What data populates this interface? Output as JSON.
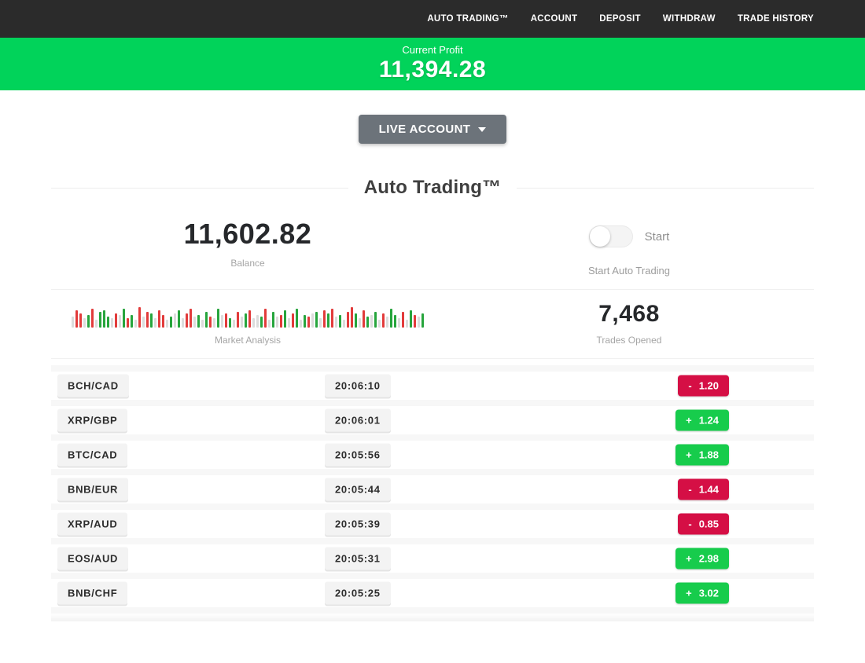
{
  "nav": {
    "items": [
      "AUTO TRADING™",
      "ACCOUNT",
      "DEPOSIT",
      "WITHDRAW",
      "TRADE HISTORY"
    ]
  },
  "profit_banner": {
    "label": "Current Profit",
    "value": "11,394.28"
  },
  "account_selector": {
    "label": "LIVE ACCOUNT"
  },
  "section_title": "Auto Trading™",
  "stats": {
    "balance": {
      "value": "11,602.82",
      "label": "Balance"
    },
    "toggle": {
      "label": "Start",
      "caption": "Start Auto Trading",
      "state": "off"
    },
    "market": {
      "label": "Market Analysis"
    },
    "trades_opened": {
      "value": "7,468",
      "label": "Trades Opened"
    }
  },
  "colors": {
    "nav_dark": "#2b2b2b",
    "banner_green": "#01d35a",
    "gain_green": "#17cc4c",
    "loss_red": "#d50f45",
    "button_gray": "#6c737a",
    "bar_red": "#e23b3b",
    "bar_green": "#27a53d",
    "bar_neutral": "#dcdcdc"
  },
  "market_bars": [
    [
      "n",
      14
    ],
    [
      "r",
      22
    ],
    [
      "r",
      18
    ],
    [
      "n",
      12
    ],
    [
      "g",
      16
    ],
    [
      "r",
      24
    ],
    [
      "n",
      10
    ],
    [
      "g",
      20
    ],
    [
      "g",
      22
    ],
    [
      "g",
      14
    ],
    [
      "n",
      12
    ],
    [
      "r",
      18
    ],
    [
      "n",
      16
    ],
    [
      "g",
      24
    ],
    [
      "r",
      12
    ],
    [
      "g",
      16
    ],
    [
      "n",
      10
    ],
    [
      "r",
      26
    ],
    [
      "n",
      14
    ],
    [
      "r",
      20
    ],
    [
      "g",
      18
    ],
    [
      "n",
      12
    ],
    [
      "r",
      22
    ],
    [
      "r",
      16
    ],
    [
      "n",
      10
    ],
    [
      "g",
      14
    ],
    [
      "n",
      18
    ],
    [
      "g",
      22
    ],
    [
      "n",
      12
    ],
    [
      "r",
      18
    ],
    [
      "r",
      24
    ],
    [
      "n",
      14
    ],
    [
      "g",
      16
    ],
    [
      "n",
      10
    ],
    [
      "g",
      20
    ],
    [
      "r",
      14
    ],
    [
      "n",
      12
    ],
    [
      "g",
      24
    ],
    [
      "n",
      16
    ],
    [
      "r",
      18
    ],
    [
      "g",
      12
    ],
    [
      "n",
      10
    ],
    [
      "r",
      20
    ],
    [
      "n",
      14
    ],
    [
      "g",
      18
    ],
    [
      "r",
      22
    ],
    [
      "n",
      12
    ],
    [
      "n",
      16
    ],
    [
      "g",
      14
    ],
    [
      "r",
      24
    ],
    [
      "n",
      10
    ],
    [
      "g",
      20
    ],
    [
      "n",
      14
    ],
    [
      "r",
      16
    ],
    [
      "g",
      22
    ],
    [
      "n",
      12
    ],
    [
      "r",
      18
    ],
    [
      "g",
      24
    ],
    [
      "n",
      10
    ],
    [
      "g",
      16
    ],
    [
      "r",
      14
    ],
    [
      "n",
      18
    ],
    [
      "g",
      20
    ],
    [
      "n",
      12
    ],
    [
      "r",
      22
    ],
    [
      "g",
      18
    ],
    [
      "r",
      24
    ],
    [
      "n",
      14
    ],
    [
      "g",
      16
    ],
    [
      "n",
      10
    ],
    [
      "r",
      20
    ],
    [
      "r",
      26
    ],
    [
      "g",
      18
    ],
    [
      "n",
      12
    ],
    [
      "r",
      22
    ],
    [
      "g",
      14
    ],
    [
      "n",
      16
    ],
    [
      "g",
      20
    ],
    [
      "n",
      10
    ],
    [
      "r",
      18
    ],
    [
      "n",
      14
    ],
    [
      "g",
      24
    ],
    [
      "g",
      16
    ],
    [
      "n",
      12
    ],
    [
      "r",
      20
    ],
    [
      "n",
      10
    ],
    [
      "g",
      22
    ],
    [
      "r",
      16
    ],
    [
      "n",
      14
    ],
    [
      "g",
      18
    ]
  ],
  "trades": [
    {
      "pair": "BCH/CAD",
      "time": "20:06:10",
      "sign": "-",
      "value": "1.20",
      "direction": "loss"
    },
    {
      "pair": "XRP/GBP",
      "time": "20:06:01",
      "sign": "+",
      "value": "1.24",
      "direction": "gain"
    },
    {
      "pair": "BTC/CAD",
      "time": "20:05:56",
      "sign": "+",
      "value": "1.88",
      "direction": "gain"
    },
    {
      "pair": "BNB/EUR",
      "time": "20:05:44",
      "sign": "-",
      "value": "1.44",
      "direction": "loss"
    },
    {
      "pair": "XRP/AUD",
      "time": "20:05:39",
      "sign": "-",
      "value": "0.85",
      "direction": "loss"
    },
    {
      "pair": "EOS/AUD",
      "time": "20:05:31",
      "sign": "+",
      "value": "2.98",
      "direction": "gain"
    },
    {
      "pair": "BNB/CHF",
      "time": "20:05:25",
      "sign": "+",
      "value": "3.02",
      "direction": "gain"
    }
  ]
}
